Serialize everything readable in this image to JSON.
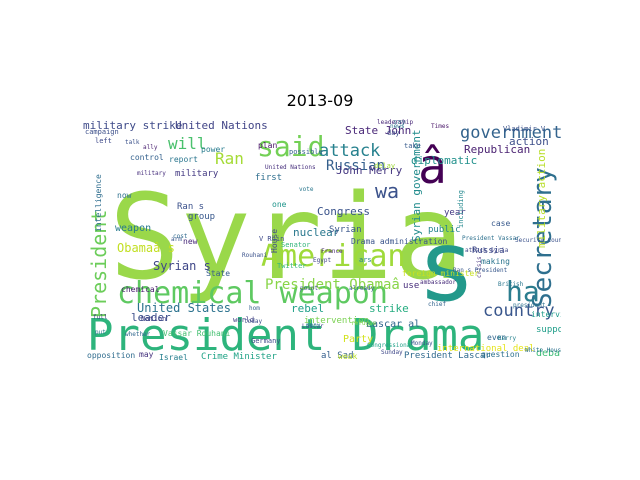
{
  "title": "2013-09",
  "colors": {
    "background": "#ffffff",
    "title": "#000000"
  },
  "words": [
    {
      "text": "Syria",
      "color": "#9ad84a"
    },
    {
      "text": "s",
      "color": "#23998b"
    },
    {
      "text": "President Drama",
      "color": "#2db47c"
    },
    {
      "text": "chemical weapon",
      "color": "#5ec961"
    },
    {
      "text": "American",
      "color": "#9fda3a"
    },
    {
      "text": "said",
      "color": "#73d055"
    },
    {
      "text": "â",
      "color": "#440154"
    },
    {
      "text": "Secretary",
      "color": "#2e6f8e"
    },
    {
      "text": "ha",
      "color": "#2b7d8e"
    },
    {
      "text": "government",
      "color": "#33638d"
    },
    {
      "text": "President",
      "color": "#6ccd5a"
    },
    {
      "text": "attack",
      "color": "#26818e"
    },
    {
      "text": "country",
      "color": "#39568c"
    },
    {
      "text": "United States",
      "color": "#2c728e"
    },
    {
      "text": "wa",
      "color": "#3b528b"
    },
    {
      "text": "will",
      "color": "#4ac16d"
    },
    {
      "text": "Ran",
      "color": "#a5db36"
    },
    {
      "text": "President Obamaâ",
      "color": "#89d548"
    },
    {
      "text": "Russian",
      "color": "#35608d"
    },
    {
      "text": "Syrian s",
      "color": "#3f4788"
    },
    {
      "text": "Obamaâ s",
      "color": "#c2df23"
    },
    {
      "text": "military strike",
      "color": "#3e4a89"
    },
    {
      "text": "United Nations",
      "color": "#414487"
    },
    {
      "text": "State John",
      "color": "#482677"
    },
    {
      "text": "Syrian government",
      "color": "#228c8d"
    },
    {
      "text": "rebel",
      "color": "#1fa088"
    },
    {
      "text": "strike",
      "color": "#26ad81"
    },
    {
      "text": "diplomatic",
      "color": "#21918c"
    },
    {
      "text": "military action",
      "color": "#b8de29"
    },
    {
      "text": "Republican",
      "color": "#481f70"
    },
    {
      "text": "action",
      "color": "#3d4e8a"
    },
    {
      "text": "John Merry",
      "color": "#453781"
    },
    {
      "text": "Congress",
      "color": "#3a538b"
    },
    {
      "text": "nuclear",
      "color": "#2a788e"
    },
    {
      "text": "weapon",
      "color": "#297b8e"
    },
    {
      "text": "leader",
      "color": "#3c4f8a"
    },
    {
      "text": "Party",
      "color": "#d2e21b"
    },
    {
      "text": "Lascar al",
      "color": "#31688e"
    },
    {
      "text": "debate",
      "color": "#3bbb75"
    },
    {
      "text": "support",
      "color": "#1f9e89"
    },
    {
      "text": "Crime Minister",
      "color": "#20a386"
    },
    {
      "text": "al Sad",
      "color": "#355f8d"
    },
    {
      "text": "President Lascar",
      "color": "#306a8e"
    },
    {
      "text": "Israel",
      "color": "#277f8e"
    },
    {
      "text": "opposition",
      "color": "#2f6c8e"
    },
    {
      "text": "may",
      "color": "#46337e"
    },
    {
      "text": "public",
      "color": "#25848e"
    },
    {
      "text": "year",
      "color": "#443983"
    },
    {
      "text": "Russia",
      "color": "#3e4989"
    },
    {
      "text": "use",
      "color": "#472d7b"
    },
    {
      "text": "group",
      "color": "#38588c"
    },
    {
      "text": "first",
      "color": "#2e6e8e"
    },
    {
      "text": "State",
      "color": "#365c8d"
    },
    {
      "text": "House",
      "color": "#3f4889"
    },
    {
      "text": "Ran s",
      "color": "#3b518b"
    },
    {
      "text": "military",
      "color": "#443a83"
    },
    {
      "text": "report",
      "color": "#2a768e"
    },
    {
      "text": "control",
      "color": "#34618d"
    },
    {
      "text": "now",
      "color": "#2d708e"
    },
    {
      "text": "new",
      "color": "#482979"
    },
    {
      "text": "power",
      "color": "#287c8e"
    },
    {
      "text": "plan",
      "color": "#471365"
    },
    {
      "text": "intervention",
      "color": "#7ad151"
    },
    {
      "text": "Syrian",
      "color": "#39568c"
    },
    {
      "text": "international deal",
      "color": "#e5e419"
    },
    {
      "text": "making",
      "color": "#2b748e"
    },
    {
      "text": "interview",
      "color": "#1e9b8a"
    },
    {
      "text": "question",
      "color": "#2d718e"
    },
    {
      "text": "Germany",
      "color": "#3e4c8a"
    },
    {
      "text": "world",
      "color": "#423f85"
    },
    {
      "text": "Nation",
      "color": "#424086"
    },
    {
      "text": "chemical",
      "color": "#481b6d"
    },
    {
      "text": "Vassar Rouhani",
      "color": "#44bf70"
    },
    {
      "text": "intelligence",
      "color": "#2e6d8e"
    },
    {
      "text": "campaign",
      "color": "#3c4f8a"
    },
    {
      "text": "even",
      "color": "#31678e"
    },
    {
      "text": "foreign minister",
      "color": "#c8e020"
    },
    {
      "text": "case",
      "color": "#38598c"
    },
    {
      "text": "day",
      "color": "#3d4d8a"
    },
    {
      "text": "say",
      "color": "#2c738e"
    },
    {
      "text": "take",
      "color": "#375b8d"
    },
    {
      "text": "one",
      "color": "#1f958b"
    },
    {
      "text": "weak",
      "color": "#bade28"
    },
    {
      "text": "Drama administration",
      "color": "#3a548c"
    },
    {
      "text": "Security Council",
      "color": "#3b528b"
    },
    {
      "text": "United Nations",
      "color": "#472f7d"
    },
    {
      "text": "including",
      "color": "#23898e"
    },
    {
      "text": "British",
      "color": "#2a778e"
    },
    {
      "text": "Senator",
      "color": "#31b57b"
    },
    {
      "text": "Vladimir V",
      "color": "#3b528b"
    },
    {
      "text": "Sunday",
      "color": "#3f4889"
    },
    {
      "text": "already",
      "color": "#365d8d"
    },
    {
      "text": "vote",
      "color": "#2a778e"
    },
    {
      "text": "Kerry",
      "color": "#26828e"
    },
    {
      "text": "White House",
      "color": "#2d708e"
    },
    {
      "text": "left",
      "color": "#3e4989"
    },
    {
      "text": "ally",
      "color": "#481f70"
    },
    {
      "text": "whether",
      "color": "#31688e"
    },
    {
      "text": "possible",
      "color": "#34618d"
    },
    {
      "text": "delay",
      "color": "#a0da39"
    },
    {
      "text": "news",
      "color": "#2c728e"
    },
    {
      "text": "Egypt",
      "color": "#404688"
    },
    {
      "text": "refugee",
      "color": "#7fd34e"
    },
    {
      "text": "Congressional",
      "color": "#1fa187"
    },
    {
      "text": "ambassador",
      "color": "#472c7a"
    },
    {
      "text": "attack Syria",
      "color": "#3f4788"
    },
    {
      "text": "crisis",
      "color": "#46327e"
    },
    {
      "text": "Times",
      "color": "#481467"
    },
    {
      "text": "Monday",
      "color": "#3a548c"
    },
    {
      "text": "leadership",
      "color": "#482878"
    },
    {
      "text": "V Ruin",
      "color": "#3e4a89"
    },
    {
      "text": "Ran s President",
      "color": "#38588c"
    },
    {
      "text": "Twitter",
      "color": "#35b779"
    },
    {
      "text": "president",
      "color": "#2c728e"
    },
    {
      "text": "chief",
      "color": "#33638d"
    },
    {
      "text": "ars",
      "color": "#26828e"
    },
    {
      "text": "Lascar",
      "color": "#3e4a89"
    },
    {
      "text": "President Vassar",
      "color": "#2d708e"
    },
    {
      "text": "France",
      "color": "#482475"
    },
    {
      "text": "Rouhani",
      "color": "#3b528b"
    },
    {
      "text": "arm",
      "color": "#39568c"
    },
    {
      "text": "full",
      "color": "#414487"
    },
    {
      "text": "put",
      "color": "#2a788e"
    },
    {
      "text": "today",
      "color": "#3c4f8a"
    },
    {
      "text": "hom",
      "color": "#355f8d"
    },
    {
      "text": "many",
      "color": "#25858e"
    },
    {
      "text": "point",
      "color": "#3e4c8a"
    },
    {
      "text": "military",
      "color": "#472f7d"
    },
    {
      "text": "cost",
      "color": "#306a8e"
    },
    {
      "text": "talk",
      "color": "#3b518b"
    }
  ]
}
